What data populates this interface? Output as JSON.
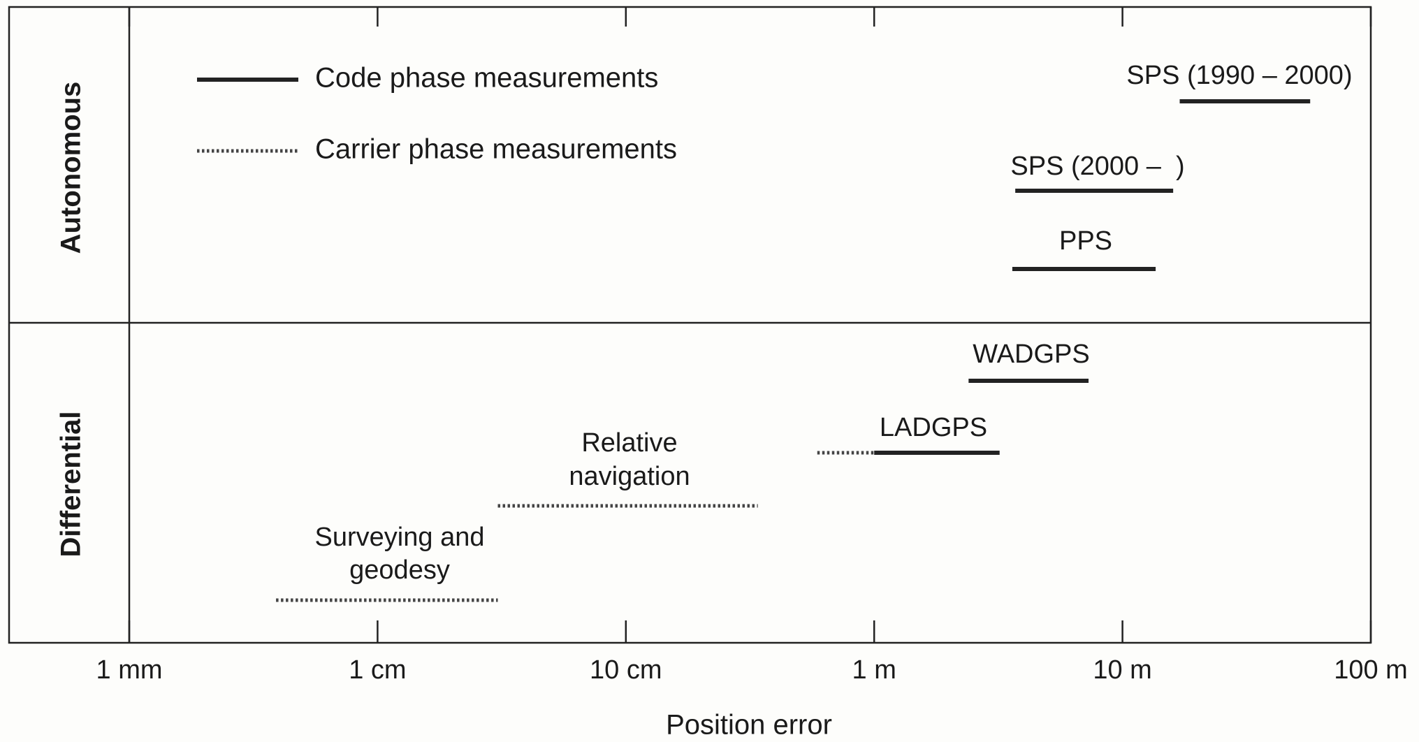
{
  "chart_data": {
    "type": "range",
    "x_label": "Position error",
    "xscale": "log",
    "xlim": [
      0.001,
      100
    ],
    "xticks": [
      {
        "value": 0.001,
        "label": "1 mm"
      },
      {
        "value": 0.01,
        "label": "1 cm"
      },
      {
        "value": 0.1,
        "label": "10 cm"
      },
      {
        "value": 1,
        "label": "1 m"
      },
      {
        "value": 10,
        "label": "10 m"
      },
      {
        "value": 100,
        "label": "100 m"
      }
    ],
    "groups": [
      "Autonomous",
      "Differential"
    ],
    "series": [
      {
        "name": "Code phase measurements",
        "style": "solid",
        "color": "#222222"
      },
      {
        "name": "Carrier phase measurements",
        "style": "dotted",
        "color": "#444444"
      }
    ],
    "ranges": [
      {
        "label": [
          "SPS (1990 – 2000)"
        ],
        "group": 0,
        "segments": [
          {
            "series": 0,
            "values": [
              17,
              57
            ]
          }
        ]
      },
      {
        "label": [
          "SPS (2000 –  )"
        ],
        "group": 0,
        "segments": [
          {
            "series": 0,
            "values": [
              3.7,
              16
            ]
          }
        ]
      },
      {
        "label": [
          "PPS"
        ],
        "group": 0,
        "segments": [
          {
            "series": 0,
            "values": [
              3.6,
              13.6
            ]
          }
        ]
      },
      {
        "label": [
          "WADGPS"
        ],
        "group": 1,
        "segments": [
          {
            "series": 0,
            "values": [
              2.4,
              7.3
            ]
          }
        ]
      },
      {
        "label": [
          "LADGPS"
        ],
        "group": 1,
        "segments": [
          {
            "series": 1,
            "values": [
              0.59,
              1
            ]
          },
          {
            "series": 0,
            "values": [
              1,
              3.2
            ]
          }
        ]
      },
      {
        "label": [
          "Relative",
          "navigation"
        ],
        "group": 1,
        "segments": [
          {
            "series": 1,
            "values": [
              0.0305,
              0.34
            ]
          }
        ]
      },
      {
        "label": [
          "Surveying and",
          "geodesy"
        ],
        "group": 1,
        "segments": [
          {
            "series": 1,
            "values": [
              0.0039,
              0.0305
            ]
          }
        ]
      }
    ]
  }
}
